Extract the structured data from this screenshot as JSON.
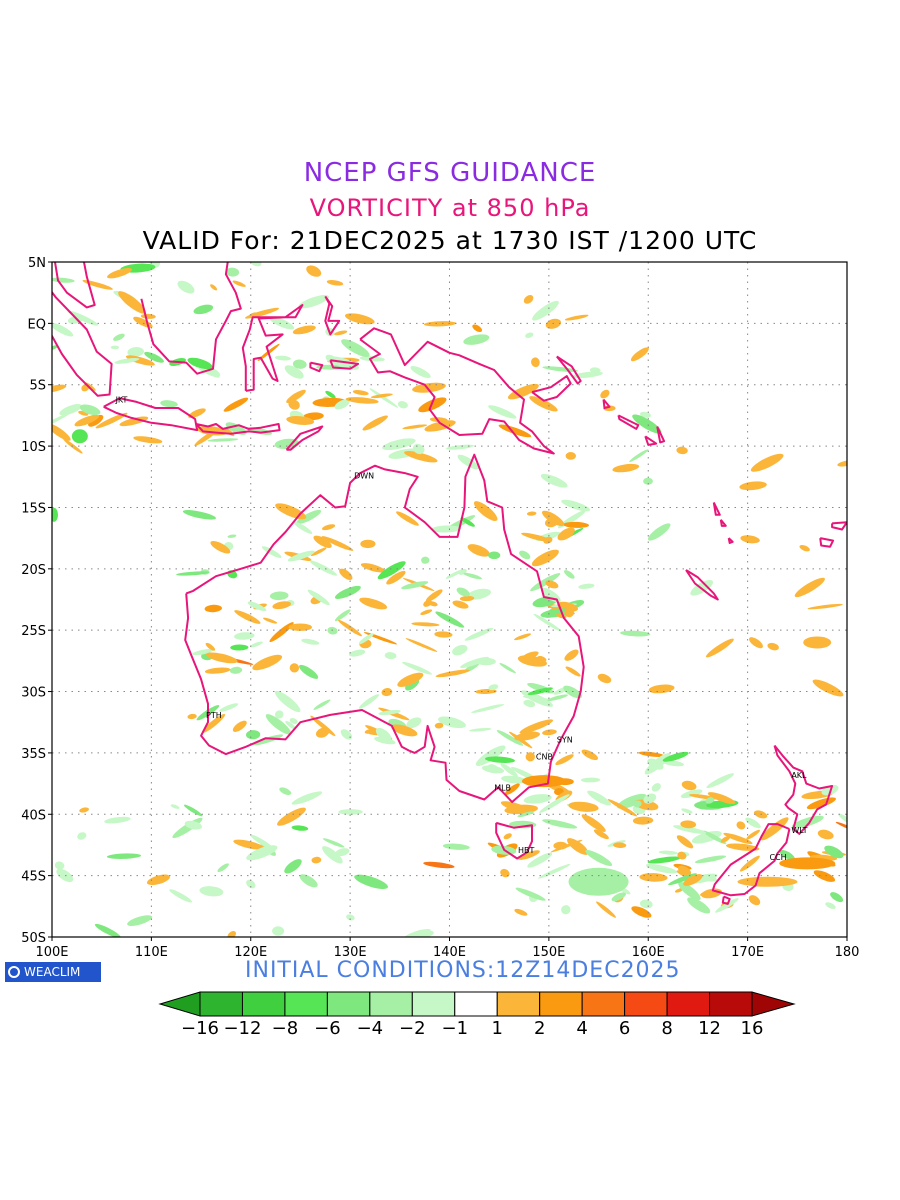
{
  "header": {
    "line1": "NCEP GFS GUIDANCE",
    "line2": "VORTICITY at 850 hPa",
    "line3": "VALID For: 21DEC2025 at 1730 IST /1200 UTC"
  },
  "footer": {
    "initial_conditions": "INITIAL CONDITIONS:12Z14DEC2025",
    "logo_text": "WEACLIM"
  },
  "map": {
    "lat_labels": [
      "5N",
      "EQ",
      "5S",
      "10S",
      "15S",
      "20S",
      "25S",
      "30S",
      "35S",
      "40S",
      "45S",
      "50S"
    ],
    "lon_labels": [
      "100E",
      "110E",
      "120E",
      "130E",
      "140E",
      "150E",
      "160E",
      "170E",
      "180"
    ],
    "lat_range": [
      -50,
      5
    ],
    "lon_range": [
      100,
      180
    ],
    "coastline_color": "#e8157a",
    "cities": [
      {
        "name": "JKT",
        "lon": 106.8,
        "lat": -6.2
      },
      {
        "name": "DWN",
        "lon": 130.8,
        "lat": -12.4
      },
      {
        "name": "PTH",
        "lon": 115.9,
        "lat": -31.9
      },
      {
        "name": "SYN",
        "lon": 151.2,
        "lat": -33.9
      },
      {
        "name": "CNB",
        "lon": 149.1,
        "lat": -35.3
      },
      {
        "name": "MLB",
        "lon": 144.9,
        "lat": -37.8
      },
      {
        "name": "HBT",
        "lon": 147.3,
        "lat": -42.9
      },
      {
        "name": "AKL",
        "lon": 174.8,
        "lat": -36.8
      },
      {
        "name": "WLT",
        "lon": 174.8,
        "lat": -41.3
      },
      {
        "name": "CCH",
        "lon": 172.6,
        "lat": -43.5
      }
    ]
  },
  "colorbar": {
    "labels": [
      "-16",
      "-12",
      "-8",
      "-6",
      "-4",
      "-2",
      "-1",
      "1",
      "2",
      "4",
      "6",
      "8",
      "12",
      "16"
    ],
    "colors": [
      "#1f9e1f",
      "#2fb42f",
      "#3fcf3f",
      "#55e555",
      "#7ee87e",
      "#a5f0a5",
      "#c6f7c6",
      "#ffffff",
      "#fbb63a",
      "#f99a10",
      "#f77514",
      "#f54a14",
      "#e01a10",
      "#b80a08",
      "#a00505"
    ]
  }
}
